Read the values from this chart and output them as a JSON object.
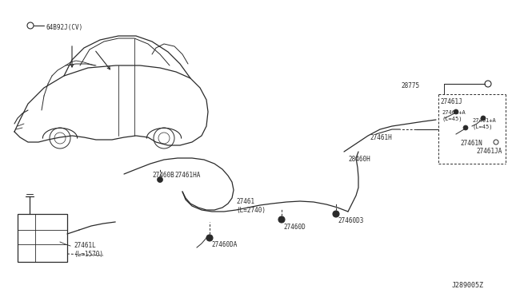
{
  "bg_color": "#ffffff",
  "line_color": "#2a2a2a",
  "text_color": "#2a2a2a",
  "diagram_id": "J289005Z",
  "labels": {
    "part_64B92J": "64B92J(CV)",
    "part_28775": "28775",
    "part_27461J": "27461J",
    "part_27461A1": "27461+A\n(L=45)",
    "part_27461A2": "27461+A\n(L=45)",
    "part_27461H": "27461H",
    "part_27461N": "27461N",
    "part_27461JA": "27461JA",
    "part_28460H": "28460H",
    "part_27460D3": "27460D3",
    "part_27460DA": "27460DA",
    "part_27460D": "27460D",
    "part_27461": "27461\n(L=2740)",
    "part_27461HA": "27461HA",
    "part_27460B": "27460B",
    "part_27461L": "27461L\n(L=1570)"
  }
}
